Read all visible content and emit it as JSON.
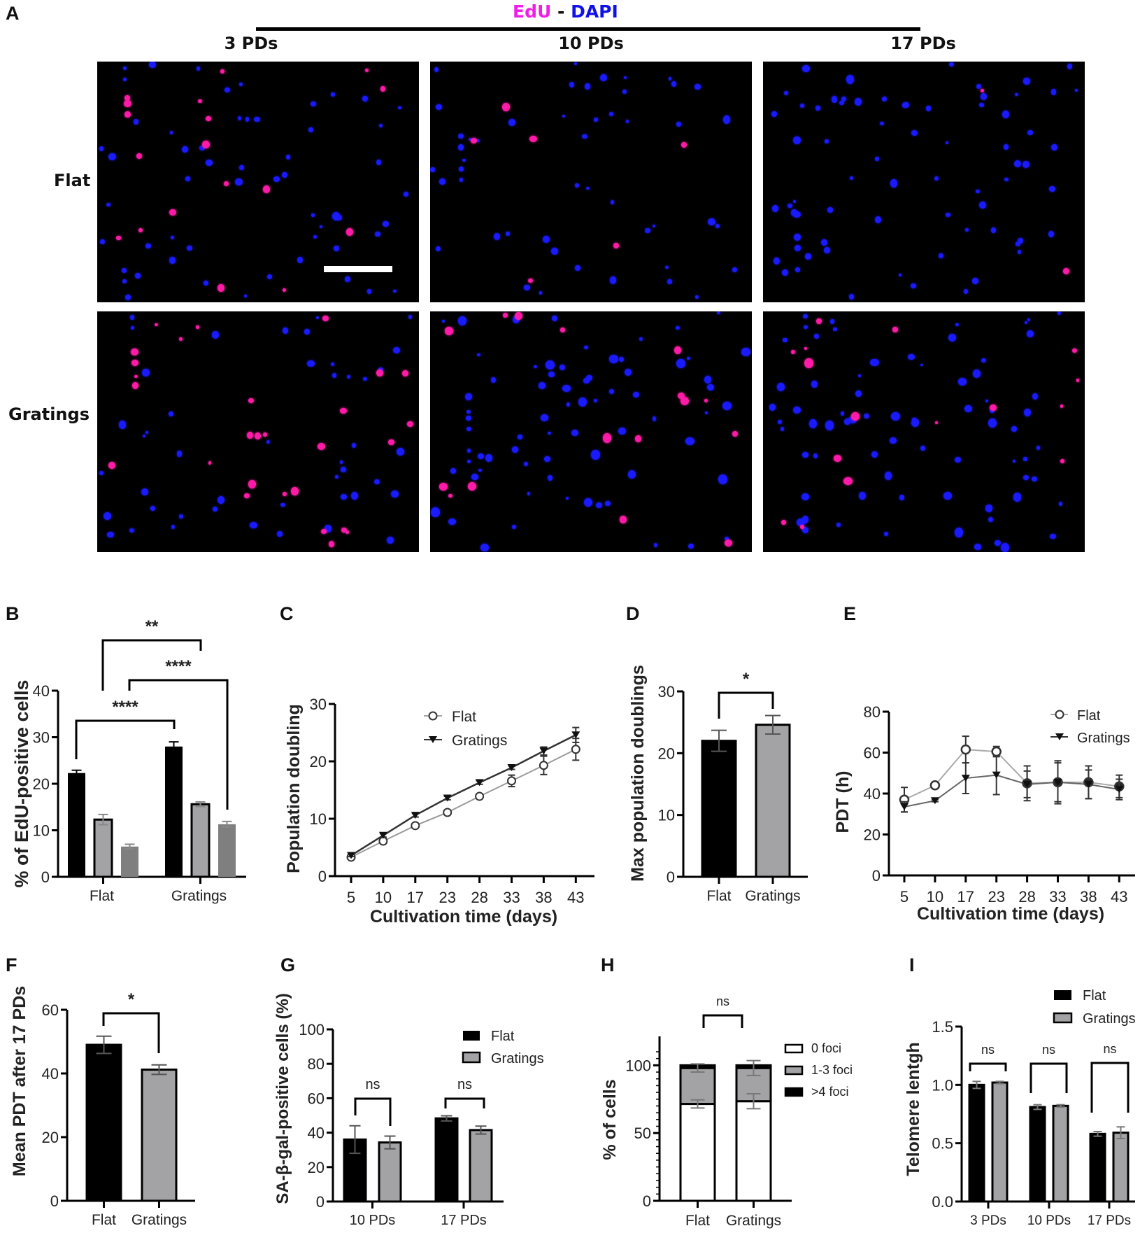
{
  "panel_a": {
    "letter": "A",
    "stain": {
      "edu": "EdU",
      "sep": " - ",
      "dapi": "DAPI",
      "edu_color": "#f01ee8",
      "dapi_color": "#1010e8"
    },
    "columns": [
      "3 PDs",
      "10 PDs",
      "17 PDs"
    ],
    "rows": [
      "Flat",
      "Gratings"
    ],
    "micrograph_background": "#000000",
    "nucleus_colors": {
      "dapi": "#1a1aff",
      "edu": "#ff1aa8"
    }
  },
  "chart_data": [
    {
      "panel": "B",
      "type": "bar",
      "title": "",
      "xlabel": "",
      "ylabel": "% of EdU-positive cells",
      "categories": [
        "Flat",
        "Gratings"
      ],
      "series": [
        {
          "name": "3 PDs",
          "color": "#000000",
          "values": [
            22.3,
            28.0
          ],
          "errors": [
            0.6,
            1.0
          ]
        },
        {
          "name": "10 PDs",
          "color": "#a3a3a6",
          "values": [
            12.3,
            15.6
          ],
          "errors": [
            1.1,
            0.5
          ]
        },
        {
          "name": "17 PDs",
          "color": "#7f7f7f",
          "values": [
            6.5,
            11.3
          ],
          "errors": [
            0.5,
            0.6
          ]
        }
      ],
      "ylim": [
        0,
        40
      ],
      "yticks": [
        "0",
        "10",
        "20",
        "30",
        "40"
      ],
      "annotations": [
        {
          "label": "****",
          "from": "Flat 3 PDs",
          "to": "Gratings 3 PDs"
        },
        {
          "label": "**",
          "from": "Flat 10 PDs",
          "to": "Gratings 10 PDs"
        },
        {
          "label": "****",
          "from": "Flat 17 PDs",
          "to": "Gratings 17 PDs"
        }
      ],
      "legend": "none"
    },
    {
      "panel": "C",
      "type": "line",
      "xlabel": "Cultivation time (days)",
      "ylabel": "Population doubling",
      "x": [
        "5",
        "10",
        "17",
        "23",
        "28",
        "33",
        "38",
        "43"
      ],
      "series": [
        {
          "name": "Flat",
          "marker": "open-circle",
          "color": "#9a9a9a",
          "values": [
            3.3,
            6.1,
            8.8,
            11.1,
            13.9,
            16.6,
            19.3,
            22.1
          ],
          "errors": [
            0.3,
            0.3,
            0.4,
            0.4,
            0.4,
            1.0,
            1.6,
            1.9
          ]
        },
        {
          "name": "Gratings",
          "marker": "filled-triangle-down",
          "color": "#333333",
          "values": [
            3.6,
            7.1,
            10.6,
            13.6,
            16.3,
            18.9,
            21.8,
            24.6
          ],
          "errors": [
            0.2,
            0.3,
            0.3,
            0.3,
            0.3,
            0.3,
            0.7,
            1.3
          ]
        }
      ],
      "ylim": [
        0,
        30
      ],
      "yticks": [
        "0",
        "10",
        "20",
        "30"
      ],
      "legend": {
        "position": "upper-left-center",
        "entries": [
          "Flat",
          "Gratings"
        ]
      }
    },
    {
      "panel": "D",
      "type": "bar",
      "xlabel": "",
      "ylabel": "Max population doublings",
      "categories": [
        "Flat",
        "Gratings"
      ],
      "values": [
        22.0,
        24.6
      ],
      "errors": [
        1.7,
        1.5
      ],
      "colors": [
        "#000000",
        "#a3a3a6"
      ],
      "ylim": [
        0,
        30
      ],
      "yticks": [
        "0",
        "10",
        "20",
        "30"
      ],
      "annotations": [
        {
          "label": "*",
          "from": "Flat",
          "to": "Gratings"
        }
      ]
    },
    {
      "panel": "E",
      "type": "line",
      "xlabel": "Cultivation time (days)",
      "ylabel": "PDT (h)",
      "x": [
        "5",
        "10",
        "17",
        "23",
        "28",
        "33",
        "38",
        "43"
      ],
      "series": [
        {
          "name": "Flat",
          "marker": "open-circle",
          "color": "#9a9a9a",
          "values": [
            37,
            44,
            61.5,
            60.5,
            45,
            45.5,
            45.5,
            43.5
          ],
          "errors": [
            6,
            0.5,
            6.5,
            2.5,
            8.5,
            10.5,
            8,
            5.5
          ]
        },
        {
          "name": "Gratings",
          "marker": "filled-triangle-down",
          "color": "#444444",
          "values": [
            33.5,
            36.5,
            47.5,
            49,
            44.5,
            45.5,
            44.5,
            42
          ],
          "errors": [
            2.5,
            0.5,
            7.5,
            9.5,
            6.5,
            9.5,
            7,
            5
          ]
        }
      ],
      "ylim": [
        0,
        80
      ],
      "yticks": [
        "0",
        "20",
        "40",
        "60",
        "80"
      ],
      "legend": {
        "position": "upper-right",
        "entries": [
          "Flat",
          "Gratings"
        ]
      }
    },
    {
      "panel": "F",
      "type": "bar",
      "xlabel": "",
      "ylabel": "Mean PDT after 17 PDs",
      "categories": [
        "Flat",
        "Gratings"
      ],
      "values": [
        49.0,
        41.2
      ],
      "errors": [
        2.7,
        1.5
      ],
      "colors": [
        "#000000",
        "#a3a3a6"
      ],
      "ylim": [
        0,
        60
      ],
      "yticks": [
        "0",
        "20",
        "40",
        "60"
      ],
      "annotations": [
        {
          "label": "*",
          "from": "Flat",
          "to": "Gratings"
        }
      ]
    },
    {
      "panel": "G",
      "type": "bar",
      "xlabel": "",
      "ylabel": "SA-β-gal-positive cells (%)",
      "categories": [
        "10 PDs",
        "17 PDs"
      ],
      "series": [
        {
          "name": "Flat",
          "color": "#000000",
          "values": [
            36.0,
            48.3
          ],
          "errors": [
            8.0,
            1.5
          ]
        },
        {
          "name": "Gratings",
          "color": "#a3a3a6",
          "values": [
            34.3,
            41.5
          ],
          "errors": [
            3.7,
            2.3
          ]
        }
      ],
      "ylim": [
        0,
        100
      ],
      "yticks": [
        "0",
        "20",
        "40",
        "60",
        "80",
        "100"
      ],
      "annotations": [
        {
          "label": "ns",
          "group": "10 PDs"
        },
        {
          "label": "ns",
          "group": "17 PDs"
        }
      ],
      "legend": {
        "position": "upper-right",
        "entries": [
          "Flat",
          "Gratings"
        ]
      }
    },
    {
      "panel": "H",
      "type": "bar",
      "stacked": true,
      "xlabel": "",
      "ylabel": "% of cells",
      "categories": [
        "Flat",
        "Gratings"
      ],
      "series": [
        {
          "name": "0 foci",
          "color": "#ffffff",
          "values": [
            71.5,
            73.5
          ],
          "errors": [
            3.0,
            5.5
          ]
        },
        {
          "name": "1-3 foci",
          "color": "#a3a3a6",
          "values": [
            26.5,
            24.5
          ],
          "errors": [
            3.0,
            5.5
          ]
        },
        {
          "name": ">4 foci",
          "color": "#000000",
          "values": [
            2.0,
            2.0
          ],
          "errors": [
            0.5,
            0.5
          ]
        }
      ],
      "ylim": [
        0,
        110
      ],
      "yticks": [
        "0",
        "50",
        "100"
      ],
      "annotations": [
        {
          "label": "ns",
          "from": "Flat",
          "to": "Gratings"
        }
      ],
      "legend": {
        "position": "right",
        "entries": [
          "0 foci",
          "1-3 foci",
          ">4 foci"
        ]
      }
    },
    {
      "panel": "I",
      "type": "bar",
      "xlabel": "",
      "ylabel": "Telomere lentgh",
      "categories": [
        "3 PDs",
        "10 PDs",
        "17 PDs"
      ],
      "series": [
        {
          "name": "Flat",
          "color": "#000000",
          "values": [
            1.0,
            0.81,
            0.58
          ],
          "errors": [
            0.03,
            0.02,
            0.02
          ]
        },
        {
          "name": "Gratings",
          "color": "#a3a3a6",
          "values": [
            1.02,
            0.82,
            0.59
          ],
          "errors": [
            0.01,
            0.01,
            0.05
          ]
        }
      ],
      "ylim": [
        0,
        1.5
      ],
      "yticks": [
        "0.0",
        "0.5",
        "1.0",
        "1.5"
      ],
      "annotations": [
        {
          "label": "ns",
          "group": "3 PDs"
        },
        {
          "label": "ns",
          "group": "10 PDs"
        },
        {
          "label": "ns",
          "group": "17 PDs"
        }
      ],
      "legend": {
        "position": "upper-right",
        "entries": [
          "Flat",
          "Gratings"
        ]
      }
    }
  ]
}
